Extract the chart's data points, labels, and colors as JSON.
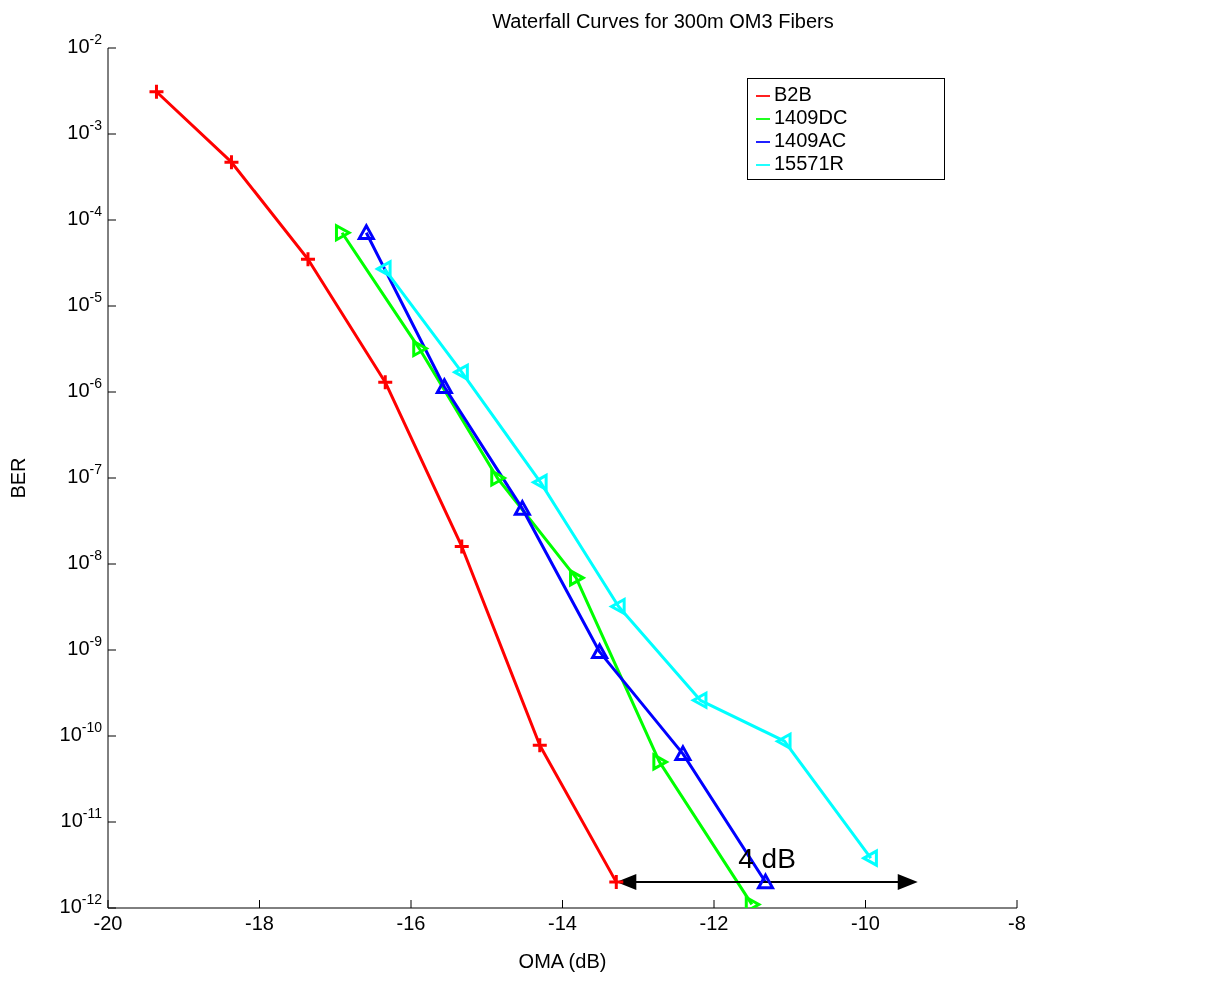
{
  "chart_data": {
    "type": "line",
    "title": "Waterfall Curves for 300m OM3 Fibers",
    "xlabel": "OMA (dB)",
    "ylabel": "BER",
    "log": "y",
    "xlim": [
      -20,
      -8
    ],
    "xticks": [
      -20,
      -18,
      -16,
      -14,
      -12,
      -10,
      -8
    ],
    "ylim": [
      1e-12,
      0.01
    ],
    "yticks": [
      {
        "value": 1e-12,
        "label": "10$^{-12}$"
      },
      {
        "value": 1e-11,
        "label": "10$^{-11}$"
      },
      {
        "value": 1e-10,
        "label": "10$^{-10}$"
      },
      {
        "value": 1e-09,
        "label": "10$^{-9}$"
      },
      {
        "value": 1e-08,
        "label": "10$^{-8}$"
      },
      {
        "value": 1e-07,
        "label": "10$^{-7}$"
      },
      {
        "value": 1e-06,
        "label": "10$^{-6}$"
      },
      {
        "value": 1e-05,
        "label": "10$^{-5}$"
      },
      {
        "value": 0.0001,
        "label": "10$^{-4}$"
      },
      {
        "value": 0.001,
        "label": "10$^{-3}$"
      },
      {
        "value": 0.01,
        "label": "10$^{-2}$"
      }
    ],
    "grid": false,
    "legend": "top right",
    "line_style": "solid",
    "series": [
      {
        "name": "B2B",
        "color": "#ff0000",
        "marker": "cross",
        "x": [
          -19.36,
          -18.37,
          -17.36,
          -16.34,
          -15.33,
          -14.3,
          -13.29
        ],
        "values": [
          0.0031,
          0.00047,
          3.5e-05,
          1.3e-06,
          1.6e-08,
          7.8e-11,
          2e-12
        ]
      },
      {
        "name": "1409DC",
        "color": "#00ff00",
        "marker": "triangle",
        "x": [
          -16.91,
          -15.89,
          -14.86,
          -13.82,
          -12.72,
          -11.5
        ],
        "values": [
          7.1e-05,
          3.2e-06,
          1e-07,
          6.9e-09,
          5e-11,
          1.1e-12
        ]
      },
      {
        "name": "1409AC",
        "color": "#0000ff",
        "marker": "triangle",
        "x": [
          -16.59,
          -15.56,
          -14.53,
          -13.51,
          -12.41,
          -11.32
        ],
        "values": [
          7.1e-05,
          1.15e-06,
          4.4e-08,
          9.5e-10,
          6.2e-11,
          2e-12
        ]
      },
      {
        "name": "15571R",
        "color": "#00ffff",
        "marker": "triangle",
        "x": [
          -16.35,
          -15.33,
          -14.29,
          -13.26,
          -12.18,
          -11.07,
          -9.93
        ],
        "values": [
          2.7e-05,
          1.7e-06,
          8.9e-08,
          3.2e-09,
          2.6e-10,
          8.7e-11,
          3.8e-12
        ]
      }
    ],
    "annotations": [
      {
        "text": "4 dB",
        "x": -11.3,
        "y": 2e-12
      }
    ]
  }
}
